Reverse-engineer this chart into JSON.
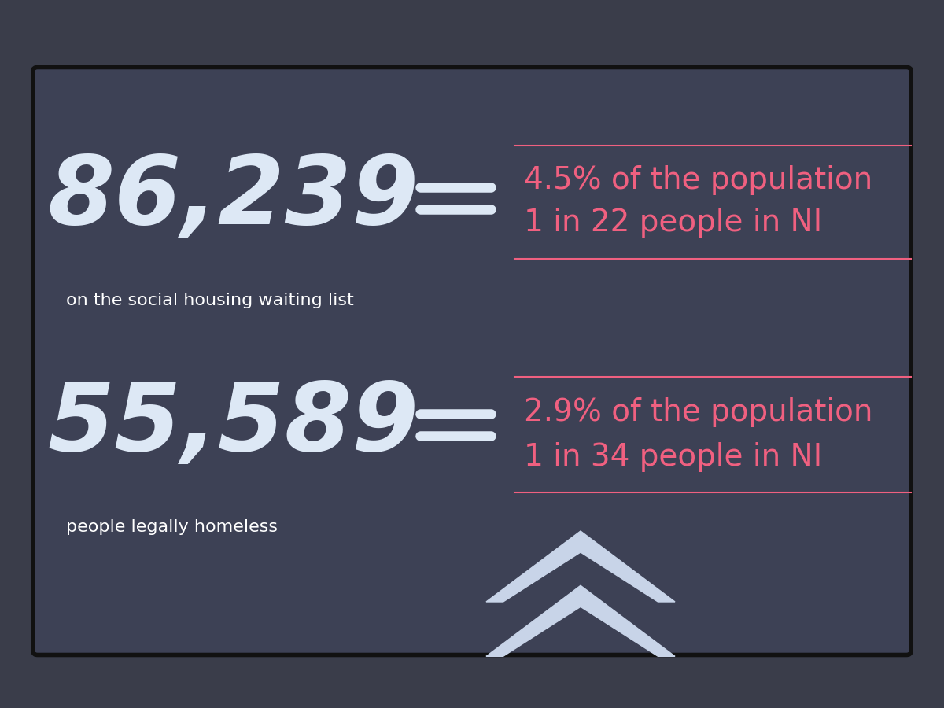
{
  "bg_color": "#3a3d4a",
  "screen_bg": "#3d4155",
  "number1": "86,239",
  "label1": "on the social housing waiting list",
  "stat1_line1": "4.5% of the population",
  "stat1_line2": "1 in 22 people in NI",
  "number2": "55,589",
  "label2": "people legally homeless",
  "stat2_line1": "2.9% of the population",
  "stat2_line2": "1 in 34 people in NI",
  "number_color": "#dde8f5",
  "label_color": "#ffffff",
  "stat_color": "#f06080",
  "equals_color": "#dde8f5",
  "line_color": "#f06080",
  "chevron_color": "#c8d4e8"
}
